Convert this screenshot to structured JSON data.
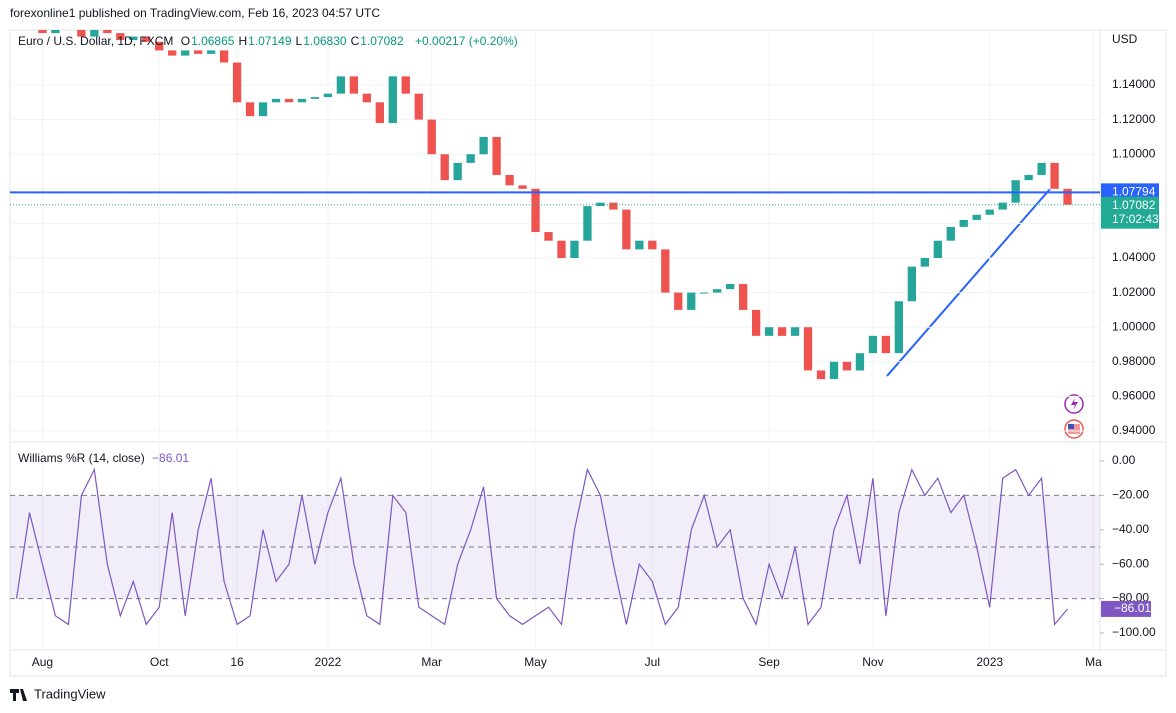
{
  "header": {
    "publisher": "forexonline1 published on TradingView.com, Feb 16, 2023 04:57 UTC",
    "brand": "TradingView"
  },
  "chart_data": [
    {
      "type": "candlestick",
      "title": "Euro / U.S. Dollar, 1D, FXCM",
      "ohlc": [
        {
          "key": "O",
          "value": "1.06865"
        },
        {
          "key": "H",
          "value": "1.07149"
        },
        {
          "key": "L",
          "value": "1.06830"
        },
        {
          "key": "C",
          "value": "1.07082"
        }
      ],
      "change": "+0.00217 (+0.20%)",
      "currency": "USD",
      "categories": [
        null,
        null,
        "Aug",
        null,
        null,
        null,
        null,
        null,
        null,
        null,
        null,
        "Oct",
        null,
        null,
        null,
        null,
        null,
        "16",
        null,
        null,
        null,
        null,
        null,
        null,
        "2022",
        null,
        null,
        null,
        null,
        null,
        null,
        null,
        "Mar",
        null,
        null,
        null,
        null,
        null,
        null,
        null,
        "May",
        null,
        null,
        null,
        null,
        null,
        null,
        null,
        null,
        "Jul",
        null,
        null,
        null,
        null,
        null,
        null,
        null,
        null,
        "Sep",
        null,
        null,
        null,
        null,
        null,
        null,
        null,
        "Nov",
        null,
        null,
        null,
        null,
        null,
        null,
        null,
        null,
        "2023",
        null,
        null,
        null,
        null,
        null,
        null,
        null,
        "Ma"
      ],
      "values": [
        1.172,
        1.175,
        1.17,
        1.176,
        1.172,
        1.168,
        1.174,
        1.17,
        1.166,
        1.168,
        1.165,
        1.16,
        1.157,
        1.16,
        1.158,
        1.16,
        1.153,
        1.13,
        1.122,
        1.13,
        1.132,
        1.13,
        1.132,
        1.133,
        1.135,
        1.145,
        1.135,
        1.13,
        1.118,
        1.145,
        1.135,
        1.12,
        1.1,
        1.085,
        1.095,
        1.1,
        1.11,
        1.088,
        1.082,
        1.08,
        1.055,
        1.05,
        1.04,
        1.05,
        1.07,
        1.072,
        1.068,
        1.045,
        1.05,
        1.045,
        1.02,
        1.01,
        1.02,
        1.02,
        1.022,
        1.025,
        1.01,
        0.995,
        1.0,
        0.995,
        1.0,
        0.975,
        0.97,
        0.98,
        0.975,
        0.985,
        0.995,
        0.985,
        1.015,
        1.035,
        1.04,
        1.05,
        1.058,
        1.062,
        1.065,
        1.068,
        1.072,
        1.085,
        1.088,
        1.095,
        1.08,
        1.07082,
        null,
        null
      ],
      "up_color": "#26a69a",
      "down_color": "#ef5350",
      "ylim": [
        0.9348,
        1.1718
      ],
      "yticks": [
        {
          "value": 0.94,
          "label": "0.94000"
        },
        {
          "value": 0.96,
          "label": "0.96000"
        },
        {
          "value": 0.98,
          "label": "0.98000"
        },
        {
          "value": 1.0,
          "label": "1.00000"
        },
        {
          "value": 1.02,
          "label": "1.02000"
        },
        {
          "value": 1.04,
          "label": "1.04000"
        },
        {
          "value": 1.06,
          "label": "1.06000"
        },
        {
          "value": 1.08,
          "label": "1.08000"
        },
        {
          "value": 1.1,
          "label": "1.10000"
        },
        {
          "value": 1.12,
          "label": "1.12000"
        },
        {
          "value": 1.14,
          "label": "1.14000"
        }
      ],
      "level": {
        "value": 1.07794,
        "color": "#2962ff"
      },
      "last": {
        "value": 1.07082,
        "countdown": "17:02:43",
        "color": "#22ab94"
      },
      "grid": true
    },
    {
      "type": "line",
      "title": "Williams %R (14, close)",
      "values": [
        -80,
        -30,
        -60,
        -90,
        -95,
        -20,
        -5,
        -60,
        -90,
        -70,
        -95,
        -85,
        -30,
        -90,
        -40,
        -10,
        -70,
        -95,
        -90,
        -40,
        -70,
        -60,
        -20,
        -60,
        -30,
        -10,
        -60,
        -90,
        -95,
        -20,
        -30,
        -85,
        -90,
        -95,
        -60,
        -40,
        -15,
        -80,
        -90,
        -95,
        -90,
        -85,
        -95,
        -40,
        -5,
        -20,
        -60,
        -95,
        -60,
        -70,
        -95,
        -85,
        -40,
        -20,
        -50,
        -40,
        -80,
        -95,
        -60,
        -80,
        -50,
        -95,
        -85,
        -40,
        -20,
        -60,
        -10,
        -90,
        -30,
        -5,
        -20,
        -10,
        -30,
        -20,
        -50,
        -85,
        -10,
        -5,
        -20,
        -10,
        -95,
        -86.01,
        null,
        null
      ],
      "current": {
        "value": -86.01,
        "label": "−86.01"
      },
      "color": "#7e57c2",
      "ylim": [
        -109.9,
        9.3
      ],
      "yticks": [
        {
          "value": 0,
          "label": "0.00"
        },
        {
          "value": -20,
          "label": "−20.00"
        },
        {
          "value": -40,
          "label": "−40.00"
        },
        {
          "value": -60,
          "label": "−60.00"
        },
        {
          "value": -80,
          "label": "−80.00"
        },
        {
          "value": -100,
          "label": "−100.00"
        }
      ],
      "bands": [
        -20,
        -50,
        -80
      ]
    }
  ]
}
